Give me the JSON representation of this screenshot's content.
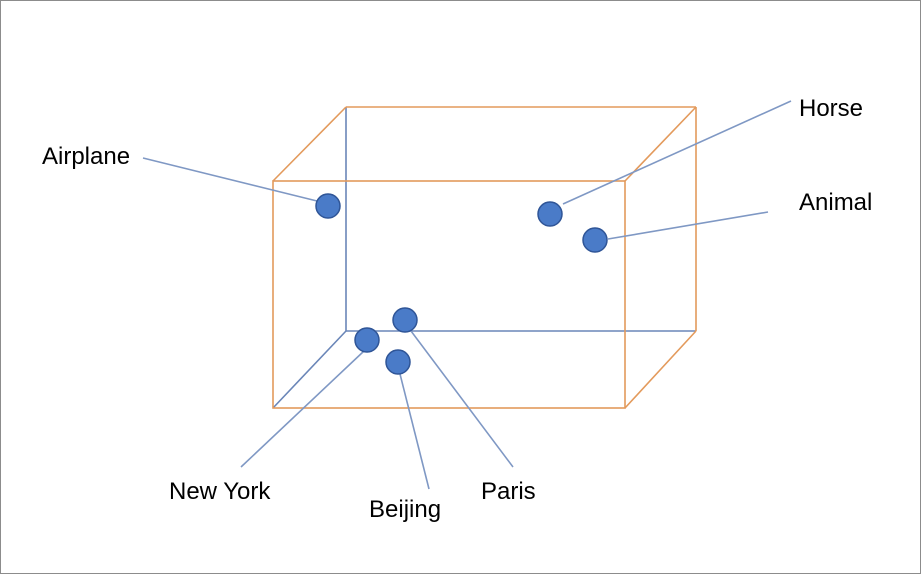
{
  "colors": {
    "box_edge": "#e39a5c",
    "hidden_edge": "#6a86b8",
    "leader": "#7f98c4",
    "point_fill": "#4a7bc8",
    "point_stroke": "#2f5597"
  },
  "points": [
    {
      "id": "airplane",
      "label": "Airplane"
    },
    {
      "id": "horse",
      "label": "Horse"
    },
    {
      "id": "animal",
      "label": "Animal"
    },
    {
      "id": "new-york",
      "label": "New York"
    },
    {
      "id": "beijing",
      "label": "Beijing"
    },
    {
      "id": "paris",
      "label": "Paris"
    }
  ]
}
